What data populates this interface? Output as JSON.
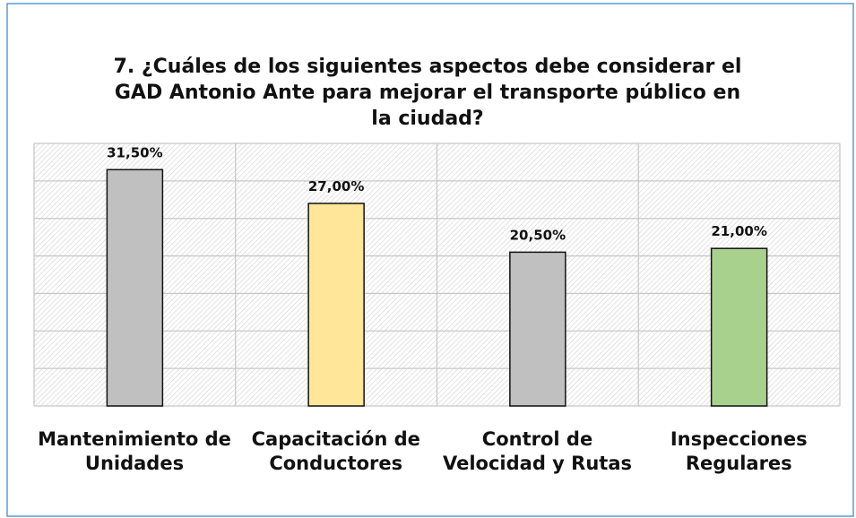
{
  "chart_data": {
    "type": "bar",
    "title": "7. ¿Cuáles de los siguientes aspectos debe considerar el GAD Antonio Ante para mejorar el transporte público en la ciudad?",
    "categories": [
      "Mantenimiento de Unidades",
      "Capacitación de Conductores",
      "Control de Velocidad y Rutas",
      "Inspecciones Regulares"
    ],
    "values": [
      31.5,
      27,
      20.5,
      21
    ],
    "value_labels": [
      "31,50%",
      "27,00%",
      "20,50%",
      "21,00%"
    ],
    "colors": [
      "#c0c0c0",
      "#ffe699",
      "#c0c0c0",
      "#a9d18e"
    ],
    "ylim": [
      0,
      35
    ],
    "yticks": [
      0,
      5,
      10,
      15,
      20,
      25,
      30,
      35
    ],
    "grid": true
  }
}
